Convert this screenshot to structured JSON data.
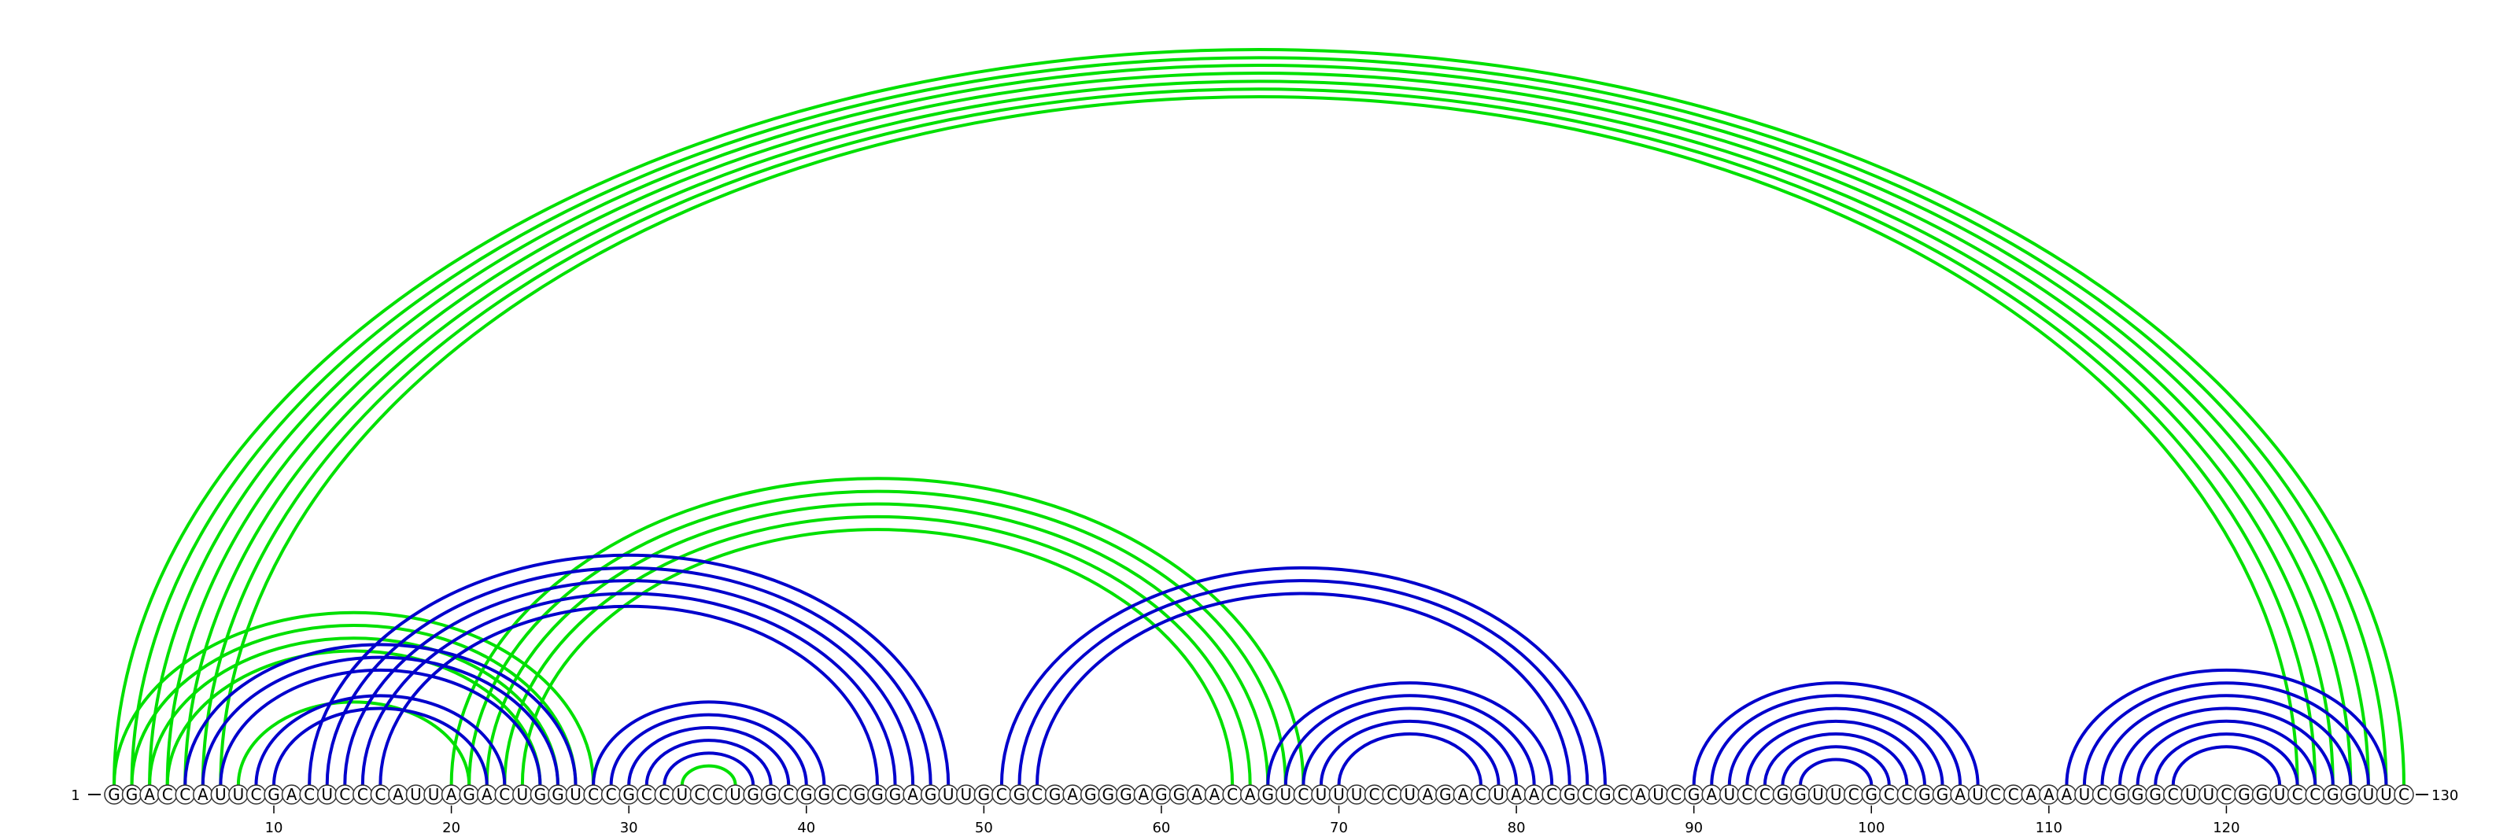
{
  "sequence": "GGACCAUUCGACUCCCAUUAGACUGGUCCGCCUCCUGGCGGCGGGAGUUGCGCGAGGGAGGAACAGUCUUUCCUAGACUAACGCGCAUCGAUCCGGUUCGCCGGAUCCAAAUCGGGCUUCGGUCCGGUUC",
  "start_label": "1",
  "end_label": "130",
  "ticks": [
    "10",
    "20",
    "30",
    "40",
    "50",
    "60",
    "70",
    "80",
    "90",
    "100",
    "110",
    "120"
  ],
  "tick_values": [
    10,
    20,
    30,
    40,
    50,
    60,
    70,
    80,
    90,
    100,
    110,
    120
  ],
  "colors": {
    "blue": "#0000cc",
    "green": "#00e000"
  },
  "arcs": {
    "green_outer": [
      [
        1,
        130
      ],
      [
        2,
        129
      ],
      [
        3,
        128
      ],
      [
        4,
        127
      ],
      [
        5,
        126
      ],
      [
        6,
        125
      ],
      [
        7,
        124
      ]
    ],
    "green_mid": [
      [
        1,
        28
      ],
      [
        2,
        27
      ],
      [
        3,
        26
      ],
      [
        4,
        25
      ]
    ],
    "green_inner": [
      [
        8,
        21
      ]
    ],
    "green_cross": [
      [
        20,
        68
      ],
      [
        21,
        67
      ],
      [
        22,
        66
      ],
      [
        23,
        65
      ],
      [
        24,
        64
      ]
    ],
    "blue_left": [
      [
        5,
        27
      ],
      [
        6,
        26
      ],
      [
        7,
        25
      ],
      [
        9,
        23
      ],
      [
        10,
        22
      ]
    ],
    "blue_cross": [
      [
        12,
        48
      ],
      [
        13,
        47
      ],
      [
        14,
        46
      ],
      [
        15,
        45
      ],
      [
        16,
        44
      ]
    ],
    "blue_small": [
      [
        28,
        41
      ],
      [
        29,
        40
      ],
      [
        30,
        39
      ],
      [
        31,
        38
      ],
      [
        32,
        37
      ]
    ],
    "green_small": [
      [
        33,
        36
      ]
    ],
    "blue_right": [
      [
        51,
        85
      ],
      [
        52,
        84
      ],
      [
        53,
        83
      ]
    ],
    "blue_h70": [
      [
        66,
        82
      ],
      [
        67,
        81
      ],
      [
        68,
        80
      ],
      [
        69,
        79
      ],
      [
        70,
        78
      ]
    ],
    "blue_h90": [
      [
        90,
        106
      ],
      [
        91,
        105
      ],
      [
        92,
        104
      ],
      [
        93,
        103
      ],
      [
        94,
        102
      ],
      [
        95,
        101
      ],
      [
        96,
        100
      ]
    ],
    "blue_h120": [
      [
        111,
        129
      ],
      [
        112,
        128
      ],
      [
        113,
        127
      ],
      [
        114,
        126
      ],
      [
        115,
        125
      ],
      [
        116,
        124
      ],
      [
        117,
        123
      ]
    ]
  }
}
